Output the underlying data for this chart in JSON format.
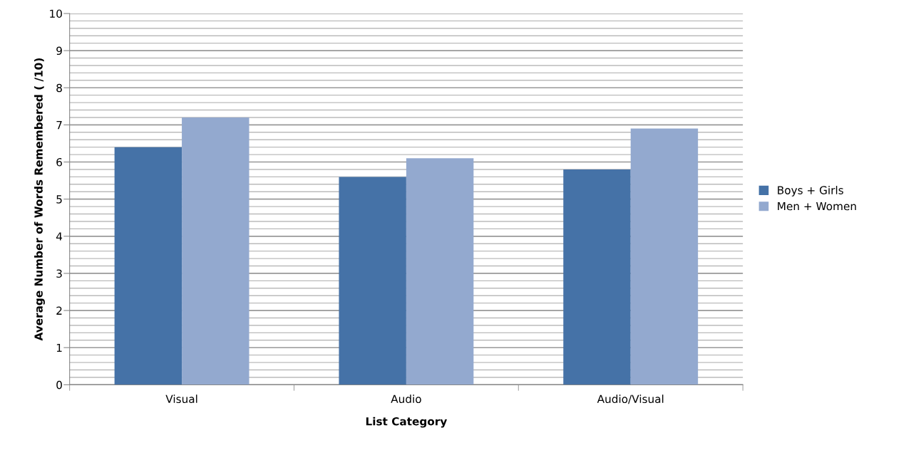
{
  "chart_data": {
    "type": "bar",
    "xlabel": "List Category",
    "ylabel": "Average Number of Words Remembered ( /10)",
    "categories": [
      "Visual",
      "Audio",
      "Audio/Visual"
    ],
    "series": [
      {
        "name": "Boys + Girls",
        "color": "#4572a7",
        "values": [
          6.4,
          5.6,
          5.8
        ]
      },
      {
        "name": "Men + Women",
        "color": "#93a9cf",
        "values": [
          7.2,
          6.1,
          6.9
        ]
      }
    ],
    "ylim": [
      0,
      10
    ],
    "yticks": [
      0,
      {
        "value": 0.2,
        "label": null
      },
      {
        "value": 0.4,
        "label": null
      },
      {
        "value": 0.6,
        "label": null
      },
      {
        "value": 0.8,
        "label": null
      },
      1,
      {
        "value": 1.2,
        "label": null
      },
      {
        "value": 1.4,
        "label": null
      },
      {
        "value": 1.6,
        "label": null
      },
      {
        "value": 1.8,
        "label": null
      },
      2,
      {
        "value": 2.2,
        "label": null
      },
      {
        "value": 2.4,
        "label": null
      },
      {
        "value": 2.6,
        "label": null
      },
      {
        "value": 2.8,
        "label": null
      },
      3,
      {
        "value": 3.2,
        "label": null
      },
      {
        "value": 3.4,
        "label": null
      },
      {
        "value": 3.6,
        "label": null
      },
      {
        "value": 3.8,
        "label": null
      },
      4,
      {
        "value": 4.2,
        "label": null
      },
      {
        "value": 4.4,
        "label": null
      },
      {
        "value": 4.6,
        "label": null
      },
      {
        "value": 4.8,
        "label": null
      },
      5,
      {
        "value": 5.2,
        "label": null
      },
      {
        "value": 5.4,
        "label": null
      },
      {
        "value": 5.6,
        "label": null
      },
      {
        "value": 5.8,
        "label": null
      },
      6,
      {
        "value": 6.2,
        "label": null
      },
      {
        "value": 6.4,
        "label": null
      },
      {
        "value": 6.6,
        "label": null
      },
      {
        "value": 6.8,
        "label": null
      },
      7,
      {
        "value": 7.2,
        "label": null
      },
      {
        "value": 7.4,
        "label": null
      },
      {
        "value": 7.6,
        "label": null
      },
      {
        "value": 7.8,
        "label": null
      },
      8,
      {
        "value": 8.2,
        "label": null
      },
      {
        "value": 8.4,
        "label": null
      },
      {
        "value": 8.6,
        "label": null
      },
      {
        "value": 8.8,
        "label": null
      },
      9,
      {
        "value": 9.2,
        "label": null
      },
      {
        "value": 9.4,
        "label": null
      },
      {
        "value": 9.6,
        "label": null
      },
      {
        "value": 9.8,
        "label": null
      },
      10
    ],
    "grid": "y",
    "legend": "right"
  }
}
